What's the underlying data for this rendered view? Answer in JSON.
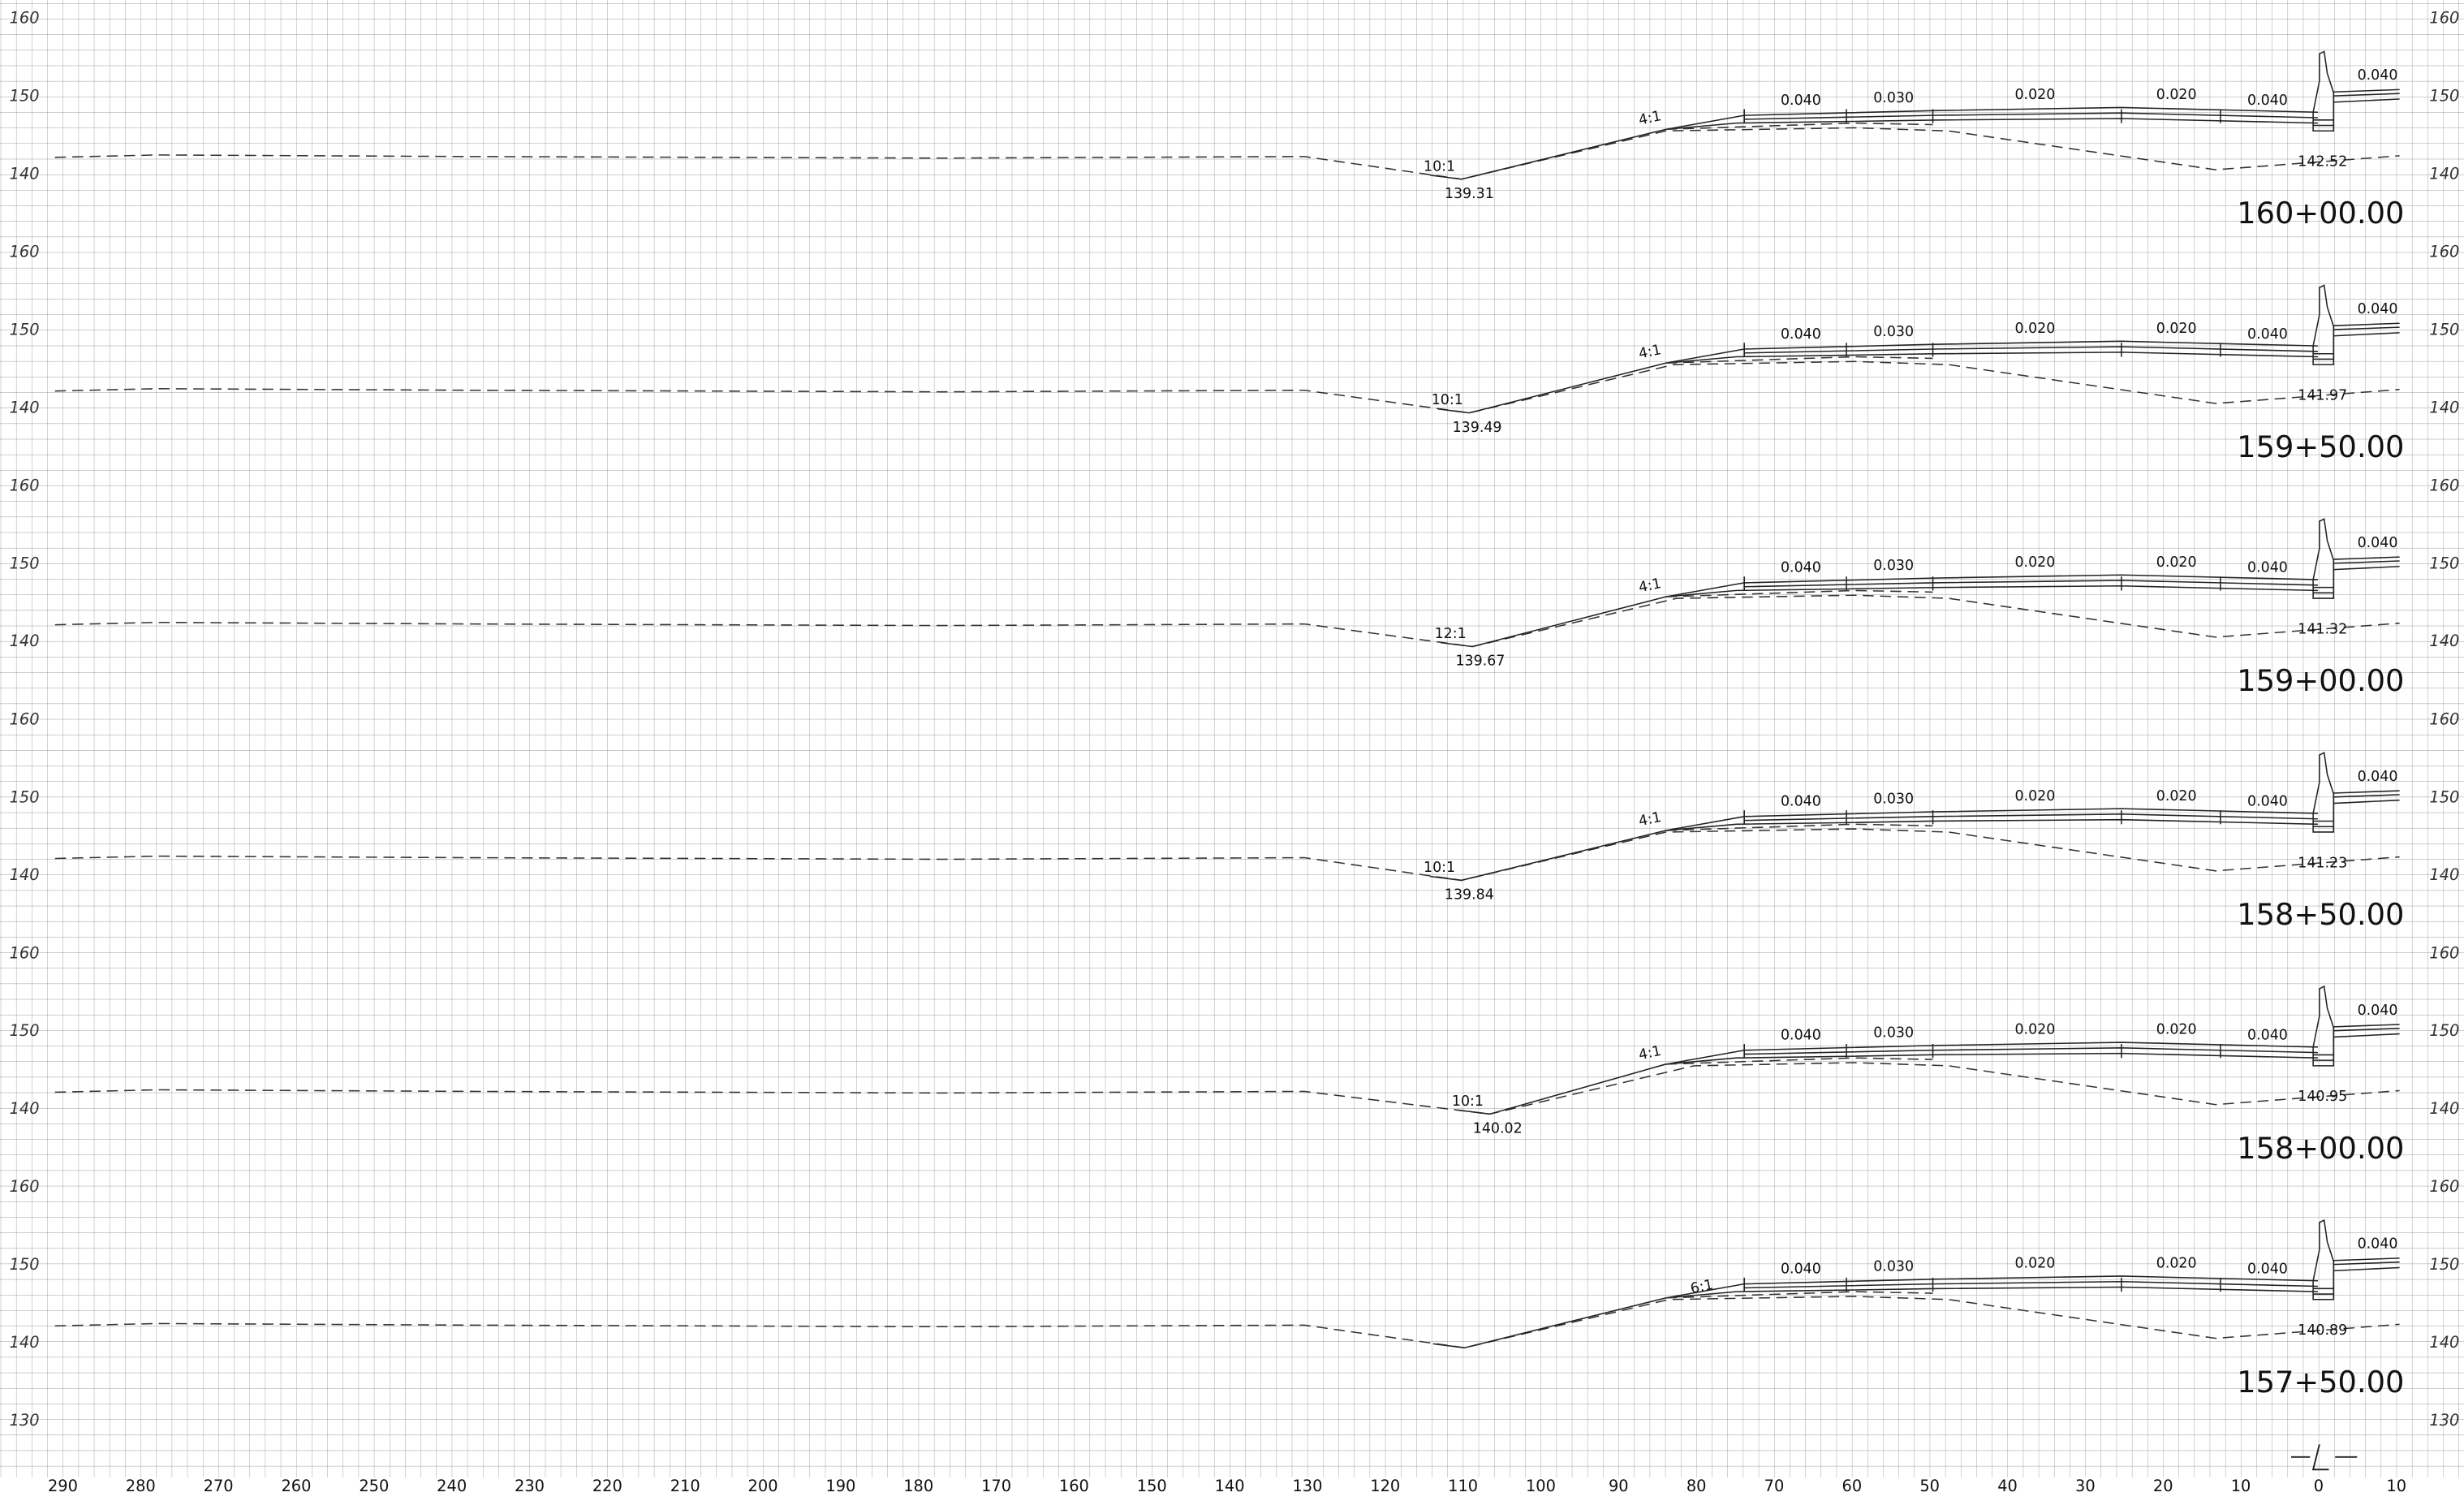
{
  "x_axis_labels": [
    "290",
    "280",
    "270",
    "260",
    "250",
    "240",
    "230",
    "220",
    "210",
    "200",
    "190",
    "180",
    "170",
    "160",
    "150",
    "140",
    "130",
    "120",
    "110",
    "100",
    "90",
    "80",
    "70",
    "60",
    "50",
    "40",
    "30",
    "20",
    "10",
    "0",
    "10"
  ],
  "sections": [
    {
      "station": "160+00.00",
      "elevation_labels": [
        "160",
        "150",
        "140"
      ],
      "low_point": "139.31",
      "ditch_slope": "10:1",
      "fill_slope": "4:1",
      "cross_slopes": [
        "0.040",
        "0.030",
        "0.020",
        "0.020",
        "0.040",
        "0.040"
      ],
      "right_elevation": "142.52"
    },
    {
      "station": "159+50.00",
      "elevation_labels": [
        "160",
        "150",
        "140"
      ],
      "low_point": "139.49",
      "ditch_slope": "10:1",
      "fill_slope": "4:1",
      "cross_slopes": [
        "0.040",
        "0.030",
        "0.020",
        "0.020",
        "0.040",
        "0.040"
      ],
      "right_elevation": "141.97"
    },
    {
      "station": "159+00.00",
      "elevation_labels": [
        "160",
        "150",
        "140"
      ],
      "low_point": "139.67",
      "ditch_slope": "12:1",
      "fill_slope": "4:1",
      "cross_slopes": [
        "0.040",
        "0.030",
        "0.020",
        "0.020",
        "0.040",
        "0.040"
      ],
      "right_elevation": "141.32"
    },
    {
      "station": "158+50.00",
      "elevation_labels": [
        "160",
        "150",
        "140"
      ],
      "low_point": "139.84",
      "ditch_slope": "10:1",
      "fill_slope": "4:1",
      "cross_slopes": [
        "0.040",
        "0.030",
        "0.020",
        "0.020",
        "0.040",
        "0.040"
      ],
      "right_elevation": "141.23"
    },
    {
      "station": "158+00.00",
      "elevation_labels": [
        "160",
        "150",
        "140"
      ],
      "low_point": "140.02",
      "ditch_slope": "10:1",
      "fill_slope": "4:1",
      "cross_slopes": [
        "0.040",
        "0.030",
        "0.020",
        "0.020",
        "0.040",
        "0.040"
      ],
      "right_elevation": "140.95"
    },
    {
      "station": "157+50.00",
      "elevation_labels": [
        "160",
        "150",
        "140",
        "130"
      ],
      "fill_slope": "6:1",
      "cross_slopes": [
        "0.040",
        "0.030",
        "0.020",
        "0.020",
        "0.040",
        "0.040"
      ],
      "right_elevation": "140.89"
    }
  ]
}
